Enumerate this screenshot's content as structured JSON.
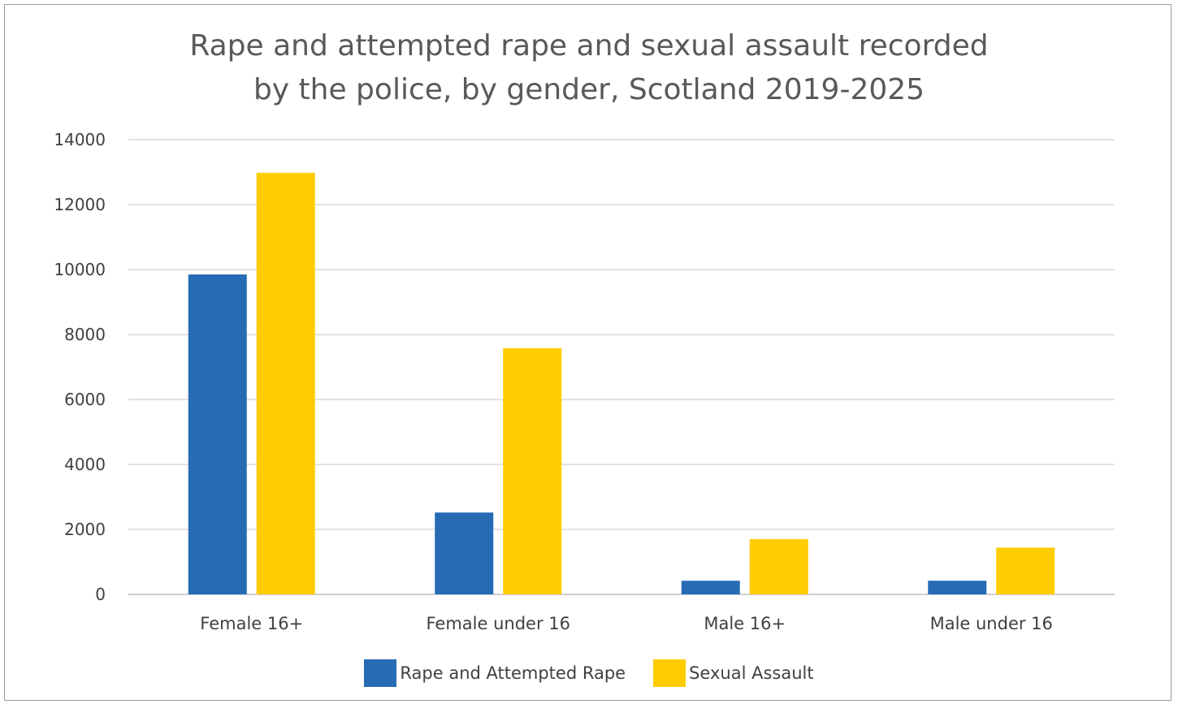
{
  "chart_data": {
    "type": "bar",
    "title_lines": [
      "Rape and attempted rape and sexual assault recorded",
      "by the police, by gender, Scotland 2019-2025"
    ],
    "categories": [
      "Female 16+",
      "Female under 16",
      "Male 16+",
      "Male under 16"
    ],
    "series": [
      {
        "name": "Rape and Attempted Rape",
        "color": "#276bb5",
        "values": [
          9850,
          2520,
          420,
          420
        ]
      },
      {
        "name": "Sexual Assault",
        "color": "#ffcc00",
        "values": [
          12980,
          7580,
          1700,
          1440
        ]
      }
    ],
    "ylim": [
      0,
      14000
    ],
    "yticks": [
      0,
      2000,
      4000,
      6000,
      8000,
      10000,
      12000,
      14000
    ],
    "grid": true,
    "legend_position": "bottom"
  }
}
